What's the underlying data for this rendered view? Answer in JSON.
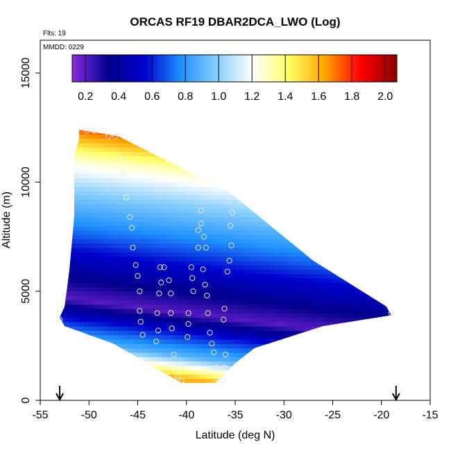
{
  "chart_data": {
    "type": "heatmap",
    "title": "ORCAS RF19 DBAR2DCA_LWO (Log)",
    "flights_note": "Flts: 19",
    "date_note": "MMDD: 0229",
    "xlabel": "Latitude (deg N)",
    "ylabel": "Altitude (m)",
    "xlim": [
      -55,
      -15
    ],
    "ylim": [
      0,
      16500
    ],
    "x_ticks": [
      -55,
      -50,
      -45,
      -40,
      -35,
      -30,
      -25,
      -20,
      -15
    ],
    "y_ticks": [
      0,
      5000,
      10000,
      15000
    ],
    "grid": false,
    "colorbar": {
      "ticks": [
        0.2,
        0.4,
        0.6,
        0.8,
        1.0,
        1.2,
        1.4,
        1.6,
        1.8,
        2.0
      ],
      "tick_labels": [
        "0.2",
        "0.4",
        "0.6",
        "0.8",
        "1.0",
        "1.2",
        "1.4",
        "1.6",
        "1.8",
        "2.0"
      ],
      "range": [
        0.12,
        2.07
      ],
      "placement": "top-inside",
      "colors": [
        "#8a2be2",
        "#00008b",
        "#0000cd",
        "#1e90ff",
        "#87cefa",
        "#ffffff",
        "#ffff66",
        "#ffa500",
        "#ff0000",
        "#8b0000"
      ]
    },
    "field": {
      "lat_min": -53,
      "lat_max": -19,
      "alt_min": 800,
      "alt_max": 12400,
      "description_levels": [
        {
          "alt": 12000,
          "value": 1.8
        },
        {
          "alt": 10500,
          "value": 1.3
        },
        {
          "alt": 9000,
          "value": 1.0
        },
        {
          "alt": 7000,
          "value": 0.7
        },
        {
          "alt": 5000,
          "value": 0.35
        },
        {
          "alt": 4000,
          "value": 0.2
        },
        {
          "alt": 3000,
          "value": 0.6
        },
        {
          "alt": 2000,
          "value": 0.9
        },
        {
          "alt": 1000,
          "value": 1.6
        }
      ]
    },
    "profile_points": [
      {
        "lat": -48.5,
        "alt": 12350
      },
      {
        "lat": -49.5,
        "alt": 12350
      },
      {
        "lat": -50.2,
        "alt": 12350
      },
      {
        "lat": -47.3,
        "alt": 12100
      },
      {
        "lat": -48.0,
        "alt": 12100
      },
      {
        "lat": -46.7,
        "alt": 11100
      },
      {
        "lat": -46.5,
        "alt": 10400
      },
      {
        "lat": -46.2,
        "alt": 9300
      },
      {
        "lat": -45.8,
        "alt": 8400
      },
      {
        "lat": -45.6,
        "alt": 7900
      },
      {
        "lat": -45.5,
        "alt": 7000
      },
      {
        "lat": -45.2,
        "alt": 6200
      },
      {
        "lat": -45.0,
        "alt": 5700
      },
      {
        "lat": -44.8,
        "alt": 5000
      },
      {
        "lat": -44.8,
        "alt": 4100
      },
      {
        "lat": -44.7,
        "alt": 3600
      },
      {
        "lat": -44.5,
        "alt": 3000
      },
      {
        "lat": -43.0,
        "alt": 4000
      },
      {
        "lat": -42.9,
        "alt": 3200
      },
      {
        "lat": -43.1,
        "alt": 2700
      },
      {
        "lat": -42.7,
        "alt": 6100
      },
      {
        "lat": -42.3,
        "alt": 6100
      },
      {
        "lat": -42.6,
        "alt": 5400
      },
      {
        "lat": -42.8,
        "alt": 4900
      },
      {
        "lat": -41.8,
        "alt": 5500
      },
      {
        "lat": -41.6,
        "alt": 4900
      },
      {
        "lat": -41.6,
        "alt": 4000
      },
      {
        "lat": -41.5,
        "alt": 3300
      },
      {
        "lat": -41.3,
        "alt": 2100
      },
      {
        "lat": -40.6,
        "alt": 1500
      },
      {
        "lat": -40.9,
        "alt": 1100
      },
      {
        "lat": -40.5,
        "alt": 900
      },
      {
        "lat": -39.8,
        "alt": 4000
      },
      {
        "lat": -39.8,
        "alt": 3500
      },
      {
        "lat": -39.9,
        "alt": 2900
      },
      {
        "lat": -39.5,
        "alt": 6100
      },
      {
        "lat": -39.4,
        "alt": 5600
      },
      {
        "lat": -39.3,
        "alt": 5000
      },
      {
        "lat": -38.3,
        "alt": 6000
      },
      {
        "lat": -38.1,
        "alt": 5300
      },
      {
        "lat": -37.9,
        "alt": 4800
      },
      {
        "lat": -37.8,
        "alt": 4000
      },
      {
        "lat": -37.6,
        "alt": 3100
      },
      {
        "lat": -37.4,
        "alt": 2600
      },
      {
        "lat": -37.2,
        "alt": 2200
      },
      {
        "lat": -36.9,
        "alt": 1500
      },
      {
        "lat": -37.0,
        "alt": 1000
      },
      {
        "lat": -38.5,
        "alt": 8700
      },
      {
        "lat": -38.5,
        "alt": 8100
      },
      {
        "lat": -38.8,
        "alt": 7800
      },
      {
        "lat": -38.2,
        "alt": 7500
      },
      {
        "lat": -38.8,
        "alt": 7000
      },
      {
        "lat": -38.0,
        "alt": 7000
      },
      {
        "lat": -35.8,
        "alt": 9300
      },
      {
        "lat": -35.3,
        "alt": 8600
      },
      {
        "lat": -35.5,
        "alt": 8000
      },
      {
        "lat": -35.4,
        "alt": 7100
      },
      {
        "lat": -35.6,
        "alt": 6400
      },
      {
        "lat": -35.8,
        "alt": 5900
      },
      {
        "lat": -36.1,
        "alt": 4200
      },
      {
        "lat": -36.2,
        "alt": 3700
      },
      {
        "lat": -36.0,
        "alt": 2100
      },
      {
        "lat": -36.1,
        "alt": 1500
      },
      {
        "lat": -36.3,
        "alt": 900
      },
      {
        "lat": -53.0,
        "alt": 4200
      },
      {
        "lat": -53.0,
        "alt": 3700
      },
      {
        "lat": -19.0,
        "alt": 4000
      }
    ],
    "arrows_lat": [
      -53,
      -18.5
    ]
  }
}
